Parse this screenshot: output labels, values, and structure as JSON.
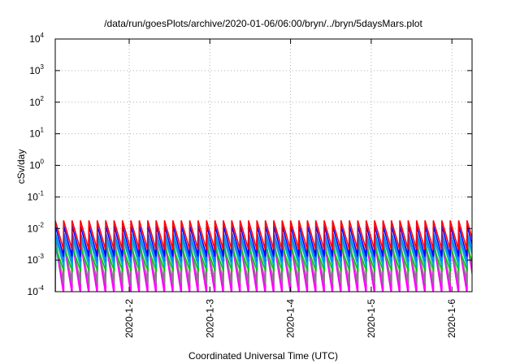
{
  "chart_data": {
    "type": "line",
    "title": "/data/run/goesPlots/archive/2020-01-06/06:00/bryn/../bryn/5daysMars.plot",
    "xlabel": "Coordinated Universal Time (UTC)",
    "ylabel": "cSv/day",
    "yscale": "log",
    "ylim": [
      0.0001,
      10000
    ],
    "y_ticks": [
      {
        "base": "10",
        "exp": "-4",
        "value": 0.0001
      },
      {
        "base": "10",
        "exp": "-3",
        "value": 0.001
      },
      {
        "base": "10",
        "exp": "-2",
        "value": 0.01
      },
      {
        "base": "10",
        "exp": "-1",
        "value": 0.1
      },
      {
        "base": "10",
        "exp": "0",
        "value": 1
      },
      {
        "base": "10",
        "exp": "1",
        "value": 10
      },
      {
        "base": "10",
        "exp": "2",
        "value": 100
      },
      {
        "base": "10",
        "exp": "3",
        "value": 1000
      },
      {
        "base": "10",
        "exp": "4",
        "value": 10000
      }
    ],
    "xlim": [
      "2020-01-01T02:00",
      "2020-01-06T06:00"
    ],
    "x_ticks": [
      {
        "label": "2020-1-2",
        "value": "2020-01-02T00:00"
      },
      {
        "label": "2020-1-3",
        "value": "2020-01-03T00:00"
      },
      {
        "label": "2020-1-4",
        "value": "2020-01-04T00:00"
      },
      {
        "label": "2020-1-5",
        "value": "2020-01-05T00:00"
      },
      {
        "label": "2020-1-6",
        "value": "2020-01-06T00:00"
      }
    ],
    "grid": true,
    "legend": "none",
    "sawtooth_period_hours": 2.5,
    "series": [
      {
        "color": "#ff00ff",
        "peak": 0.0045,
        "trough": 0.0001,
        "phase_hours": 0.0
      },
      {
        "color": "#ff0000",
        "peak": 0.018,
        "trough": 0.0022,
        "phase_hours": 0.0
      },
      {
        "color": "#0000ff",
        "peak": 0.012,
        "trough": 0.0013,
        "phase_hours": 0.05
      },
      {
        "color": "#0080ff",
        "peak": 0.007,
        "trough": 0.0009,
        "phase_hours": 0.1
      },
      {
        "color": "#00aacc",
        "peak": 0.005,
        "trough": 0.0006,
        "phase_hours": 0.15
      },
      {
        "color": "#808080",
        "peak": 0.004,
        "trough": 0.00018,
        "phase_hours": 0.08
      },
      {
        "color": "#00cc00",
        "peak": 0.0025,
        "trough": 0.00045,
        "phase_hours": 0.12
      }
    ]
  }
}
